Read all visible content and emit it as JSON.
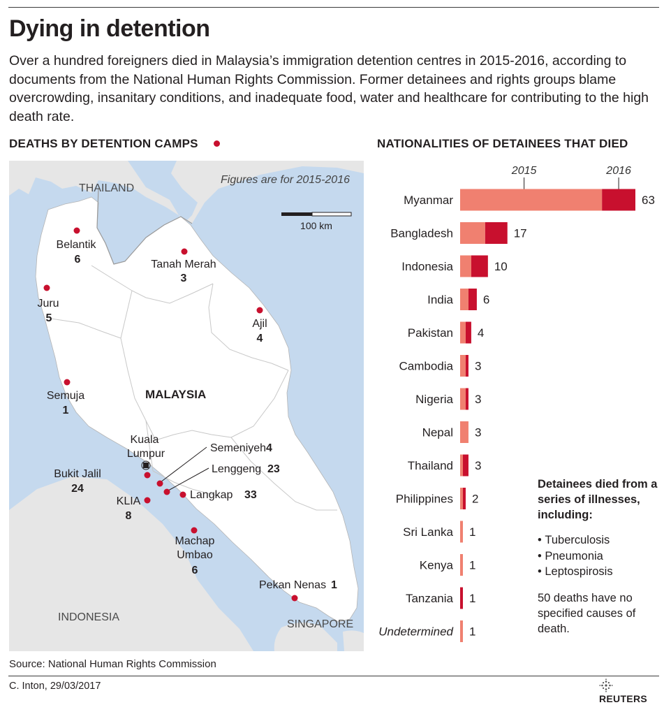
{
  "title": "Dying in detention",
  "intro": "Over a hundred foreigners died in Malaysia’s immigration detention centres in 2015-2016, according to documents from the National Human Rights Commission. Former detainees and rights groups blame overcrowding, insanitary conditions, and inadequate food, water and healthcare for contributing to the high death rate.",
  "map": {
    "title": "DEATHS BY DETENTION CAMPS",
    "note": "Figures are for 2015-2016",
    "scale_label": "100 km",
    "country_labels": [
      "THAILAND",
      "MALAYSIA",
      "INDONESIA",
      "SINGAPORE"
    ],
    "capital": [
      "Kuala",
      "Lumpur"
    ],
    "camps": [
      {
        "name": "Belantik",
        "deaths": "6"
      },
      {
        "name": "Tanah Merah",
        "deaths": "3"
      },
      {
        "name": "Juru",
        "deaths": "5"
      },
      {
        "name": "Ajil",
        "deaths": "4"
      },
      {
        "name": "Semuja",
        "deaths": "1"
      },
      {
        "name": "Semeniyeh",
        "deaths": "4"
      },
      {
        "name": "Lenggeng",
        "deaths": "23"
      },
      {
        "name": "Bukit Jalil",
        "deaths": "24"
      },
      {
        "name": "Langkap",
        "deaths": "33"
      },
      {
        "name": "KLIA",
        "deaths": "8"
      },
      {
        "name": "Machap Umbao",
        "deaths": "6"
      },
      {
        "name": "Pekan Nenas",
        "deaths": "1"
      }
    ],
    "colors": {
      "sea": "#c5d9ee",
      "land": "#ffffff",
      "other_land": "#e6e6e6",
      "border": "#b4b4b4",
      "dot": "#c8102e"
    }
  },
  "chart_data": {
    "type": "bar",
    "orientation": "horizontal",
    "stacked": true,
    "title": "NATIONALITIES OF DETAINEES THAT DIED",
    "categories": [
      "Myanmar",
      "Bangladesh",
      "Indonesia",
      "India",
      "Pakistan",
      "Cambodia",
      "Nigeria",
      "Nepal",
      "Thailand",
      "Philippines",
      "Sri Lanka",
      "Kenya",
      "Tanzania",
      "Undetermined"
    ],
    "totals": [
      "63",
      "17",
      "10",
      "6",
      "4",
      "3",
      "3",
      "3",
      "3",
      "2",
      "1",
      "1",
      "1",
      "1"
    ],
    "series": [
      {
        "name": "2015",
        "color": "#f08070",
        "values": [
          51,
          9,
          4,
          3,
          2,
          2,
          2,
          3,
          1,
          1,
          1,
          1,
          0,
          1
        ]
      },
      {
        "name": "2016",
        "color": "#c8102e",
        "values": [
          12,
          8,
          6,
          3,
          2,
          1,
          1,
          0,
          2,
          1,
          0,
          0,
          1,
          0
        ]
      }
    ],
    "italic_categories": [
      "Undetermined"
    ],
    "xlim": [
      0,
      63
    ]
  },
  "notes": {
    "heading": "Detainees died from a series of illnesses, including:",
    "items": [
      "Tuberculosis",
      "Pneumonia",
      "Leptospirosis"
    ],
    "footer": "50 deaths have no specified causes of death."
  },
  "source": "Source: National Human Rights Commission",
  "credit": "C. Inton, 29/03/2017",
  "brand": "REUTERS"
}
